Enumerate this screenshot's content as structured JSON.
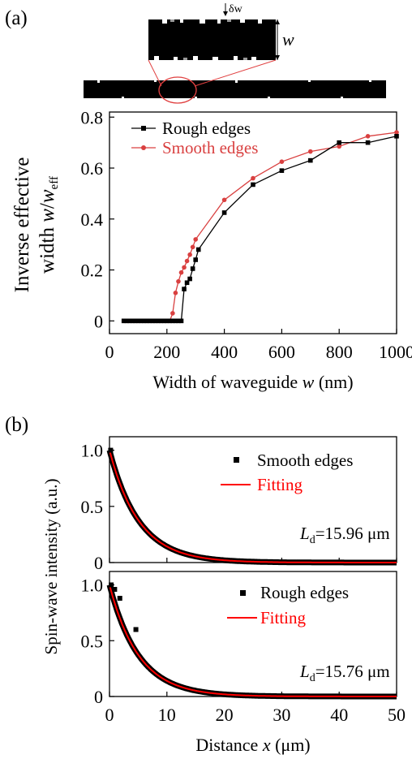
{
  "panel_a": {
    "label": "(a)",
    "inset": {
      "dw_label": "δw",
      "w_label": "w"
    }
  },
  "panel_b": {
    "label": "(b)"
  },
  "colors": {
    "rough": "#000000",
    "smooth": "#d94040",
    "fit": "#ff0000"
  },
  "chart_data": [
    {
      "type": "line",
      "xlabel": "Width of waveguide w (nm)",
      "xlabel_parts": [
        "Width of waveguide ",
        "w",
        " (nm)"
      ],
      "ylabel": "Inverse effective width w/w_eff",
      "ylabel_line1": "Inverse effective",
      "ylabel_line2_parts": [
        "width ",
        "w",
        "/",
        "w",
        "eff"
      ],
      "xlim": [
        0,
        1000
      ],
      "ylim": [
        -0.05,
        0.82
      ],
      "xticks": [
        0,
        200,
        400,
        600,
        800,
        1000
      ],
      "yticks": [
        0,
        0.2,
        0.4,
        0.6,
        0.8
      ],
      "grid": false,
      "legend_position": "top-left",
      "series": [
        {
          "name": "Rough edges",
          "marker": "square",
          "x": [
            50,
            60,
            70,
            80,
            90,
            100,
            110,
            120,
            130,
            140,
            150,
            160,
            170,
            180,
            190,
            200,
            210,
            220,
            230,
            240,
            250,
            260,
            270,
            280,
            290,
            300,
            310,
            400,
            500,
            600,
            700,
            800,
            900,
            1000
          ],
          "y": [
            0,
            0,
            0,
            0,
            0,
            0,
            0,
            0,
            0,
            0,
            0,
            0,
            0,
            0,
            0,
            0,
            0,
            0,
            0,
            0,
            0,
            0.125,
            0.15,
            0.165,
            0.205,
            0.24,
            0.28,
            0.425,
            0.535,
            0.59,
            0.63,
            0.7,
            0.7,
            0.725
          ]
        },
        {
          "name": "Smooth edges",
          "marker": "circle",
          "x": [
            50,
            60,
            70,
            80,
            90,
            100,
            110,
            120,
            130,
            140,
            150,
            160,
            170,
            180,
            190,
            200,
            210,
            220,
            230,
            240,
            250,
            260,
            270,
            280,
            290,
            300,
            400,
            500,
            600,
            700,
            800,
            900,
            1000
          ],
          "y": [
            0,
            0,
            0,
            0,
            0,
            0,
            0,
            0,
            0,
            0,
            0,
            0,
            0,
            0,
            0,
            0,
            0,
            0.03,
            0.11,
            0.155,
            0.19,
            0.21,
            0.235,
            0.26,
            0.29,
            0.32,
            0.475,
            0.56,
            0.625,
            0.665,
            0.685,
            0.725,
            0.74
          ]
        }
      ]
    },
    {
      "type": "scatter",
      "ylabel": "Spin-wave intensity (a.u.)",
      "xlim": [
        0,
        50
      ],
      "ylim": [
        0,
        1.12
      ],
      "yticks": [
        0,
        0.5,
        1.0
      ],
      "ytick_labels": [
        "0",
        "0.5",
        "1.0"
      ],
      "series": [
        {
          "name": "Smooth edges",
          "marker": "square",
          "points": [
            [
              0.2,
              1.0
            ]
          ],
          "decay_length_um": 15.96
        },
        {
          "name": "Fitting",
          "fit": "exponential decay",
          "decay_length_um": 15.96
        }
      ],
      "annotation": {
        "symbol": "L",
        "subscript": "d",
        "text": "=15.96 μm"
      }
    },
    {
      "type": "scatter",
      "xlabel": "Distance x (μm)",
      "xlabel_parts": [
        "Distance ",
        "x",
        " (μm)"
      ],
      "xlim": [
        0,
        50
      ],
      "ylim": [
        0,
        1.12
      ],
      "xticks": [
        0,
        10,
        20,
        30,
        40,
        50
      ],
      "yticks": [
        0,
        0.5,
        1.0
      ],
      "ytick_labels": [
        "0",
        "0.5",
        "1.0"
      ],
      "series": [
        {
          "name": "Rough edges",
          "marker": "square",
          "points": [
            [
              0.3,
              1.0
            ],
            [
              0.9,
              0.96
            ],
            [
              1.8,
              0.88
            ],
            [
              4.6,
              0.6
            ]
          ],
          "decay_length_um": 15.76
        },
        {
          "name": "Fitting",
          "fit": "exponential decay",
          "decay_length_um": 15.76
        }
      ],
      "annotation": {
        "symbol": "L",
        "subscript": "d",
        "text": "=15.76 μm"
      }
    }
  ]
}
